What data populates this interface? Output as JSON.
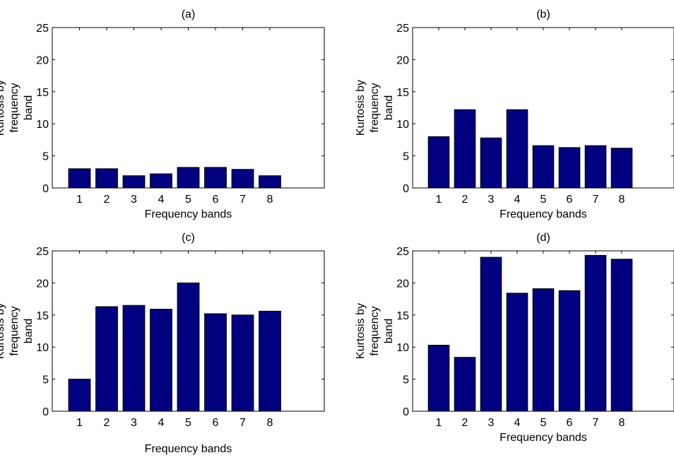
{
  "figure": {
    "xlabel": "Frequency bands",
    "ylabel_lines": [
      "Kurtosis by",
      "frequency",
      "band"
    ],
    "bar_color": "#000080",
    "bar_edge_color": "#000000"
  },
  "chart_data": [
    {
      "type": "bar",
      "title": "(a)",
      "categories": [
        "1",
        "2",
        "3",
        "4",
        "5",
        "6",
        "7",
        "8"
      ],
      "values": [
        3.0,
        3.0,
        1.9,
        2.2,
        3.2,
        3.2,
        2.9,
        1.9
      ],
      "xlabel": "Frequency bands",
      "ylabel": "Kurtosis by frequency band",
      "ylim": [
        0,
        25
      ],
      "yticks": [
        0,
        5,
        10,
        15,
        20,
        25
      ],
      "grid": false,
      "legend": "none"
    },
    {
      "type": "bar",
      "title": "(b)",
      "categories": [
        "1",
        "2",
        "3",
        "4",
        "5",
        "6",
        "7",
        "8"
      ],
      "values": [
        8.0,
        12.2,
        7.8,
        12.2,
        6.6,
        6.3,
        6.6,
        6.2
      ],
      "xlabel": "Frequency bands",
      "ylabel": "Kurtosis by frequency band",
      "ylim": [
        0,
        25
      ],
      "yticks": [
        0,
        5,
        10,
        15,
        20,
        25
      ],
      "grid": false,
      "legend": "none"
    },
    {
      "type": "bar",
      "title": "(c)",
      "categories": [
        "1",
        "2",
        "3",
        "4",
        "5",
        "6",
        "7",
        "8"
      ],
      "values": [
        5.0,
        16.3,
        16.5,
        15.9,
        20.0,
        15.2,
        15.0,
        15.6
      ],
      "xlabel": "Frequency bands",
      "ylabel": "Kurtosis by frequency band",
      "ylim": [
        0,
        25
      ],
      "yticks": [
        0,
        5,
        10,
        15,
        20,
        25
      ],
      "grid": false,
      "legend": "none"
    },
    {
      "type": "bar",
      "title": "(d)",
      "categories": [
        "1",
        "2",
        "3",
        "4",
        "5",
        "6",
        "7",
        "8"
      ],
      "values": [
        10.3,
        8.4,
        24.0,
        18.4,
        19.1,
        18.8,
        24.3,
        23.7
      ],
      "xlabel": "Frequency bands",
      "ylabel": "Kurtosis by frequency band",
      "ylim": [
        0,
        25
      ],
      "yticks": [
        0,
        5,
        10,
        15,
        20,
        25
      ],
      "grid": false,
      "legend": "none"
    }
  ]
}
